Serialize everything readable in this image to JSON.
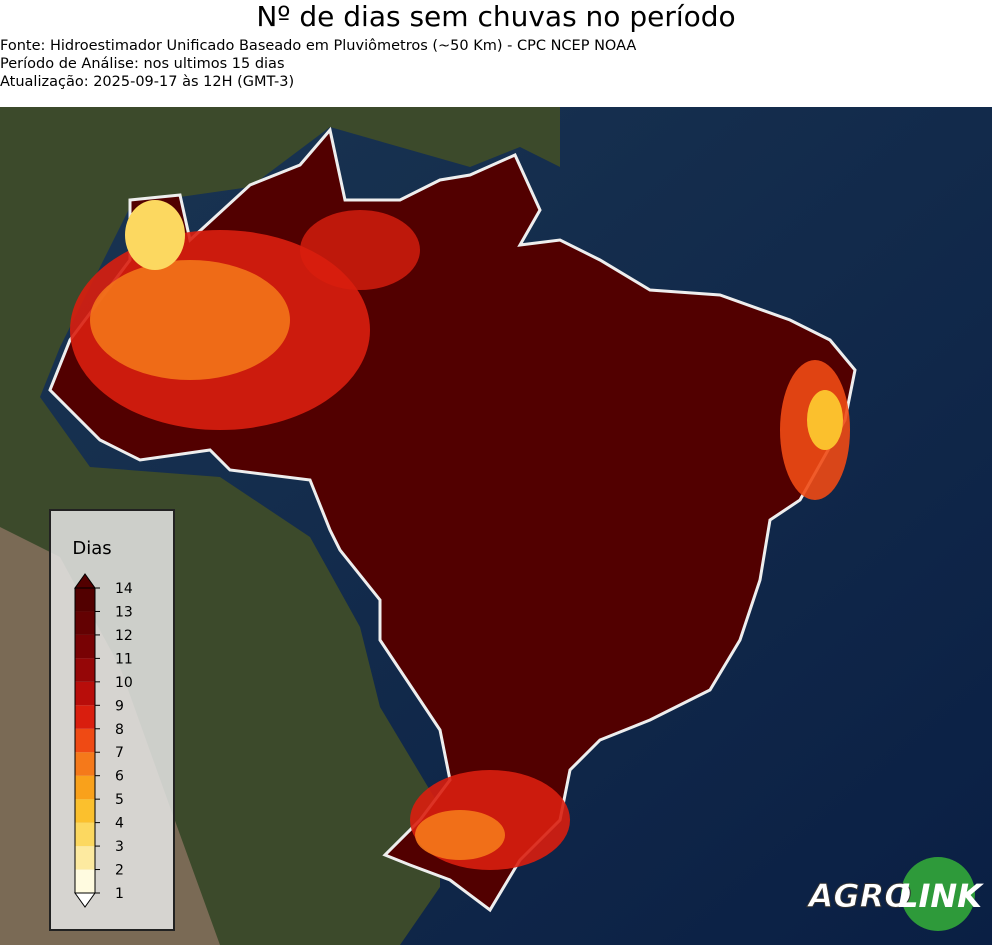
{
  "header": {
    "title": "Nº de dias sem chuvas no período",
    "lines": [
      "Fonte: Hidroestimador Unificado Baseado em Pluviômetros (~50 Km) - CPC NCEP NOAA",
      "Período de Análise: nos ultimos 15 dias",
      "Atualização: 2025-09-17 às 12H (GMT-3)"
    ]
  },
  "legend": {
    "title": "Dias",
    "ticks": [
      1,
      2,
      3,
      4,
      5,
      6,
      7,
      8,
      9,
      10,
      11,
      12,
      13,
      14
    ],
    "colors": [
      "#fffbe0",
      "#fdeaa0",
      "#fcd860",
      "#fbc02d",
      "#f9a11b",
      "#f5791a",
      "#ef4a14",
      "#d91e0e",
      "#b80d0a",
      "#950607",
      "#780204",
      "#630102",
      "#520000"
    ]
  },
  "logo": {
    "left": "AGRO",
    "right": "LINK"
  }
}
